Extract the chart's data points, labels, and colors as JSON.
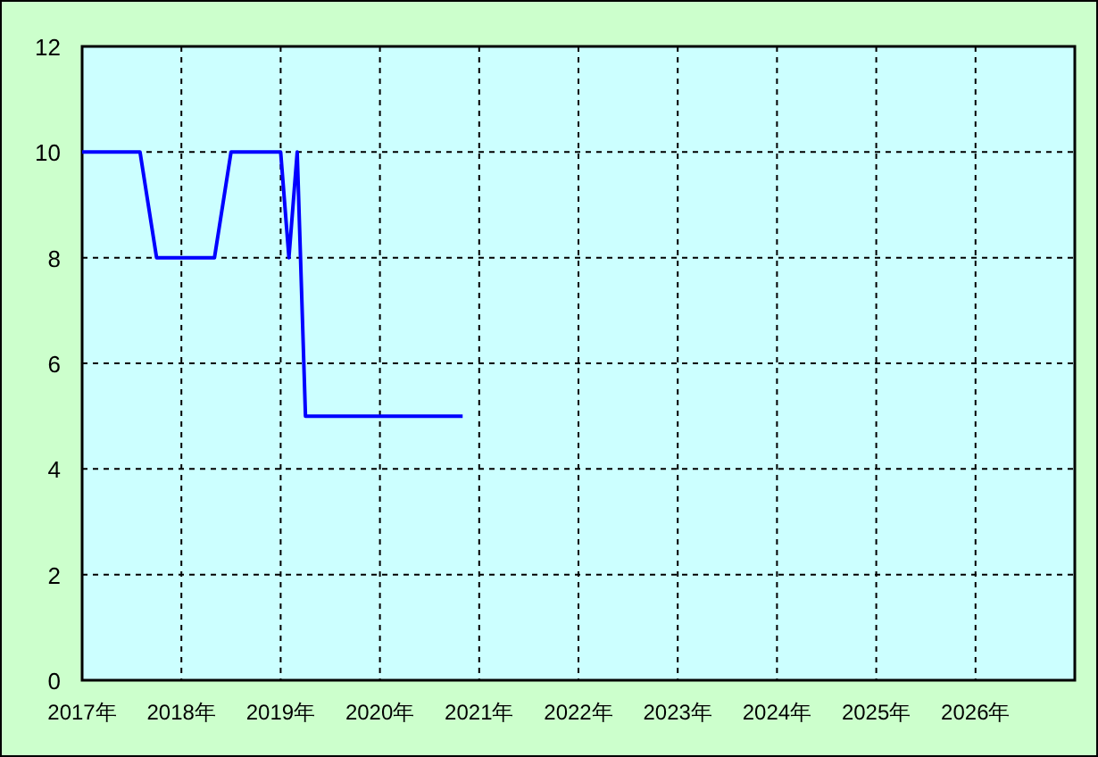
{
  "chart_data": {
    "type": "line",
    "x": [
      "2017-01",
      "2017-08",
      "2017-10",
      "2018-05",
      "2018-07",
      "2019-01",
      "2019-02",
      "2019-03",
      "2019-04",
      "2020-11"
    ],
    "series": [
      {
        "color": "#0000ff",
        "values": [
          10,
          10,
          8,
          8,
          10,
          10,
          8,
          10,
          5,
          5
        ]
      }
    ],
    "xlim": [
      "2017",
      "2027"
    ],
    "xticks": [
      {
        "value": "2017",
        "label": "2017年"
      },
      {
        "value": "2018",
        "label": "2018年"
      },
      {
        "value": "2019",
        "label": "2019年"
      },
      {
        "value": "2020",
        "label": "2020年"
      },
      {
        "value": "2021",
        "label": "2021年"
      },
      {
        "value": "2022",
        "label": "2022年"
      },
      {
        "value": "2023",
        "label": "2023年"
      },
      {
        "value": "2024",
        "label": "2024年"
      },
      {
        "value": "2025",
        "label": "2025年"
      },
      {
        "value": "2026",
        "label": "2026年"
      }
    ],
    "ylim": [
      0,
      12
    ],
    "yticks": [
      0,
      2,
      4,
      6,
      8,
      10,
      12
    ],
    "grid": true,
    "marker": "none",
    "line_style": "solid"
  }
}
